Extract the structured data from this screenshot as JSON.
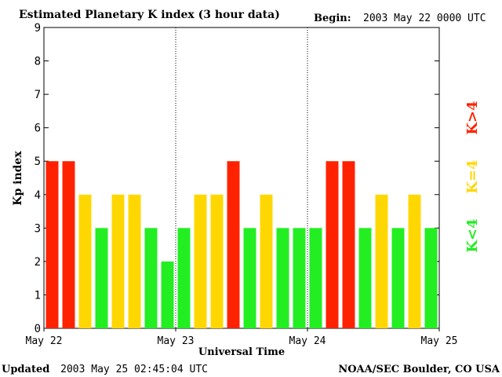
{
  "chart_data": {
    "type": "bar",
    "title": "Estimated Planetary K index (3 hour data)",
    "begin_label": "Begin:",
    "begin_value": "2003 May 22 0000 UTC",
    "xlabel": "Universal Time",
    "ylabel": "Kp index",
    "ylim": [
      0,
      9
    ],
    "yticks": [
      "0",
      "1",
      "2",
      "3",
      "4",
      "5",
      "6",
      "7",
      "8",
      "9"
    ],
    "xticks": [
      "May 22",
      "May 23",
      "May 24",
      "May 25"
    ],
    "grid": false,
    "values": [
      5,
      5,
      4,
      3,
      4,
      4,
      3,
      2,
      3,
      4,
      4,
      5,
      3,
      4,
      3,
      3,
      3,
      5,
      5,
      3,
      4,
      3,
      4,
      3
    ],
    "legend": {
      "placement": "right",
      "items": [
        {
          "label": "K<4",
          "color": "#22ee22"
        },
        {
          "label": "K=4",
          "color": "#ffd700"
        },
        {
          "label": "K>4",
          "color": "#ff2200"
        }
      ]
    }
  },
  "footer": {
    "updated_label": "Updated",
    "updated_value": "2003 May 25 02:45:04 UTC",
    "source": "NOAA/SEC Boulder, CO USA"
  },
  "colors": {
    "low": "#22ee22",
    "mid": "#ffd700",
    "high": "#ff2200"
  }
}
